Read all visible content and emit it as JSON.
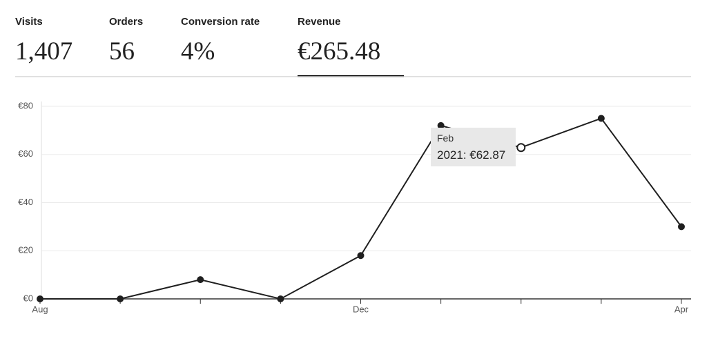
{
  "metrics": [
    {
      "label": "Visits",
      "value": "1,407",
      "selected": false
    },
    {
      "label": "Orders",
      "value": "56",
      "selected": false
    },
    {
      "label": "Conversion rate",
      "value": "4%",
      "selected": false
    },
    {
      "label": "Revenue",
      "value": "€265.48",
      "selected": true
    }
  ],
  "chart_data": {
    "type": "line",
    "categories": [
      "Aug",
      null,
      null,
      null,
      "Dec",
      null,
      null,
      null,
      "Apr"
    ],
    "values": [
      0,
      0,
      8,
      0,
      18,
      72,
      62.87,
      75,
      30
    ],
    "color": "#1f1f1f",
    "ylim": [
      0,
      80
    ],
    "yticks": [
      {
        "value": 0,
        "label": "€0"
      },
      {
        "value": 20,
        "label": "€20"
      },
      {
        "value": 40,
        "label": "€40"
      },
      {
        "value": 60,
        "label": "€60"
      },
      {
        "value": 80,
        "label": "€80"
      }
    ],
    "grid": true,
    "tooltip": {
      "index": 6,
      "title": "Feb",
      "text": "2021: €62.87"
    }
  }
}
